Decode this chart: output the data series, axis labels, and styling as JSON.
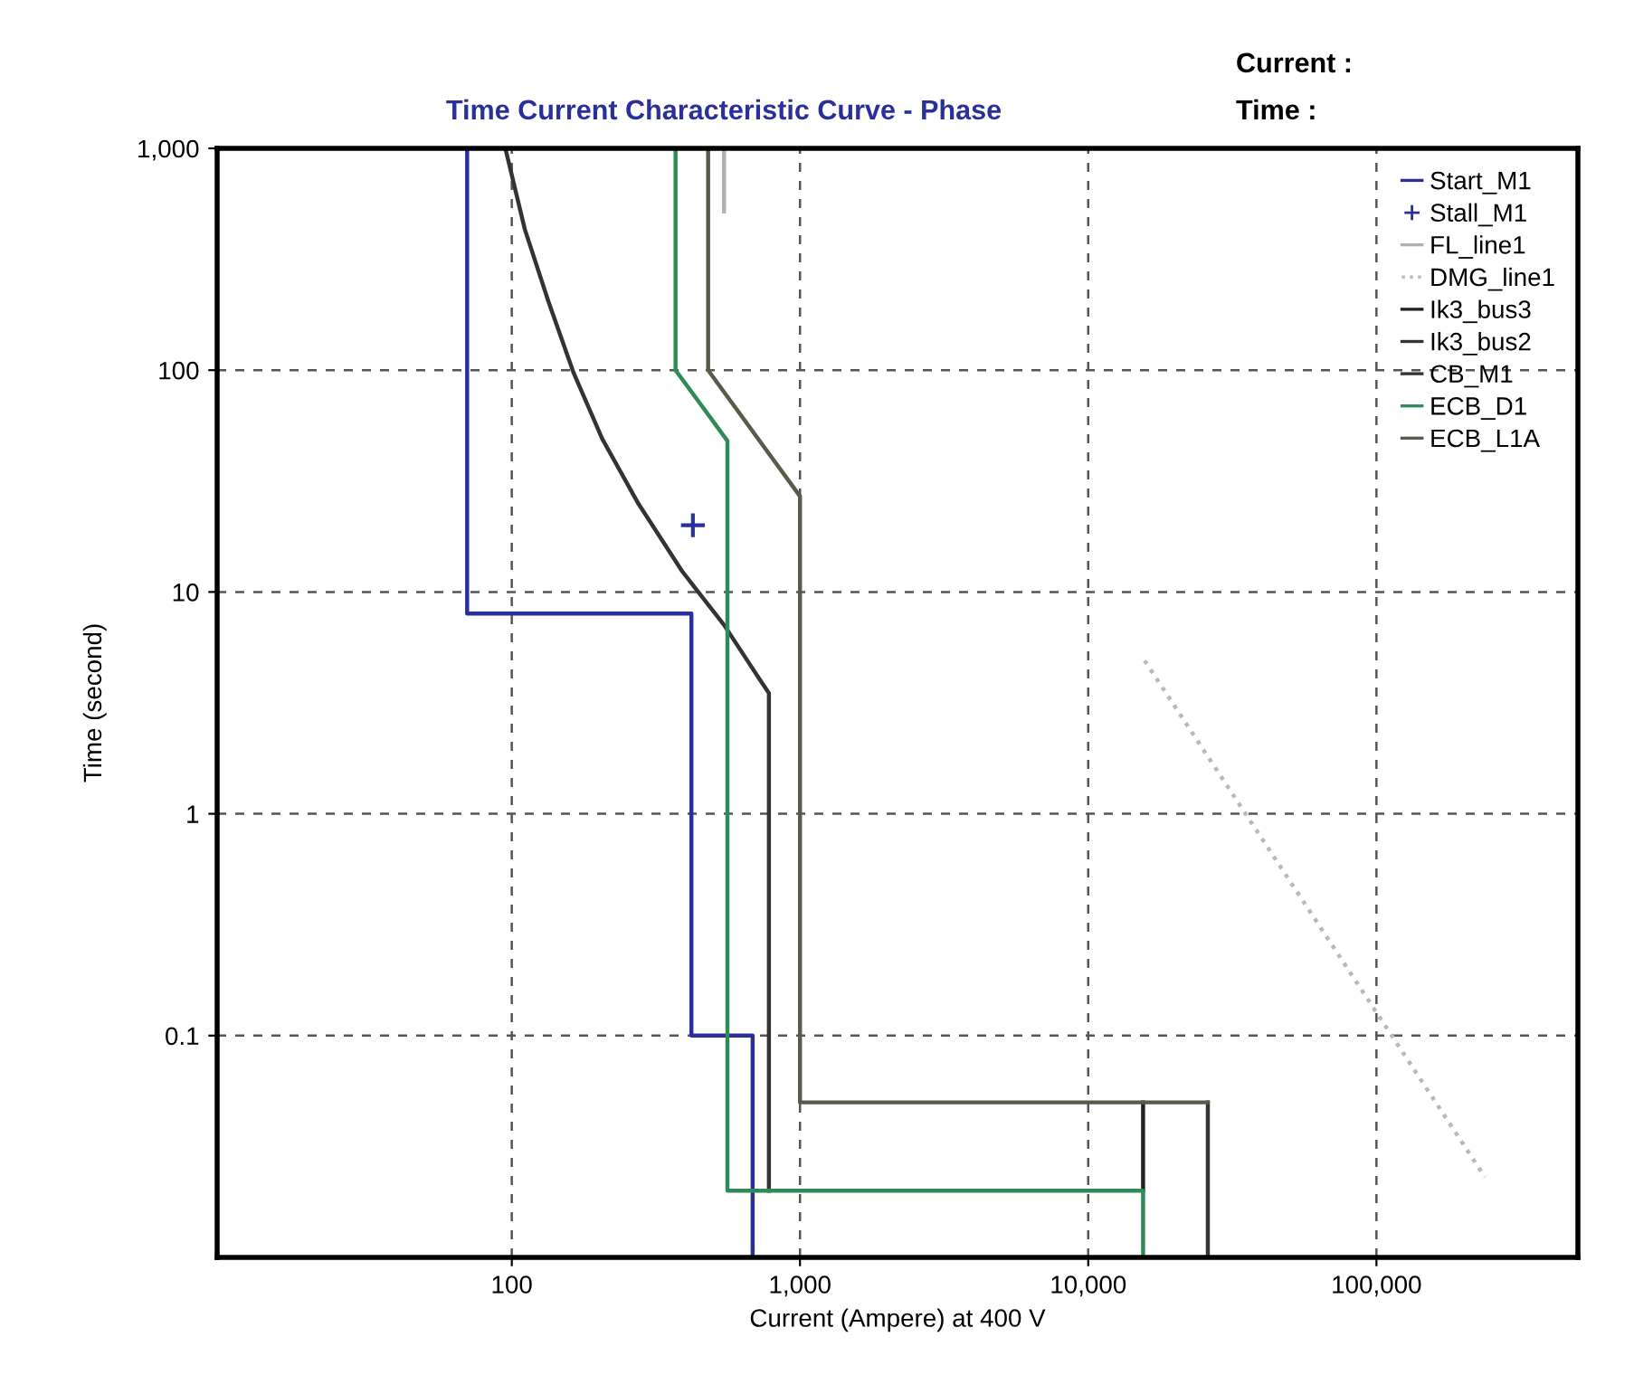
{
  "chart_data": {
    "type": "line",
    "title": "Time Current Characteristic Curve - Phase",
    "xlabel": "Current (Ampere) at 400 V",
    "ylabel": "Time (second)",
    "annotations": [
      "Current :",
      "Time :"
    ],
    "log": "xy",
    "grid": true,
    "legend": "top right",
    "xlim": [
      9.5,
      500000
    ],
    "ylim": [
      0.01,
      1000
    ],
    "xticks": [
      {
        "value": 100,
        "label": "100"
      },
      {
        "value": 1000,
        "label": "1,000"
      },
      {
        "value": 10000,
        "label": "10,000"
      },
      {
        "value": 100000,
        "label": "100,000"
      }
    ],
    "yticks": [
      {
        "value": 0.1,
        "label": "0.1"
      },
      {
        "value": 1,
        "label": "1"
      },
      {
        "value": 10,
        "label": "10"
      },
      {
        "value": 100,
        "label": "100"
      },
      {
        "value": 1000,
        "label": "1,000"
      }
    ],
    "series": [
      {
        "name": "Start_M1",
        "color": "#2a2f9a",
        "x": [
          70,
          70,
          420,
          420,
          685,
          685
        ],
        "values": [
          1000,
          8,
          8,
          0.1,
          0.1,
          0.01
        ]
      },
      {
        "name": "Stall_M1",
        "type": "scatter",
        "marker": "cross",
        "color": "#2a2f9a",
        "x": [
          425
        ],
        "values": [
          20
        ]
      },
      {
        "name": "FL_line1",
        "color": "#b0b0b0",
        "x": [
          545,
          545
        ],
        "values": [
          1000,
          520
        ]
      },
      {
        "name": "DMG_line1",
        "line_style": "dotted",
        "color": "#b8b8b8",
        "x": [
          15700,
          238000
        ],
        "values": [
          4.9,
          0.023
        ]
      },
      {
        "name": "Ik3_bus3",
        "color": "#222222",
        "x": [
          15500,
          15500
        ],
        "values": [
          0.05,
          0.02
        ]
      },
      {
        "name": "Ik3_bus2",
        "color": "#333333",
        "x": [
          26000,
          26000
        ],
        "values": [
          0.05,
          0.01
        ]
      },
      {
        "name": "CB_M1",
        "color": "#333333",
        "x": [
          95,
          111,
          134,
          164,
          206,
          275,
          390,
          545,
          728,
          780,
          780
        ],
        "values": [
          1000,
          431,
          204,
          97,
          49,
          25,
          12.4,
          7.1,
          4.0,
          3.5,
          0.02
        ]
      },
      {
        "name": "ECB_D1",
        "color": "#2e8b57",
        "x": [
          370,
          370,
          560,
          560,
          15500,
          15500
        ],
        "values": [
          1000,
          100,
          48,
          0.02,
          0.02,
          0.01
        ]
      },
      {
        "name": "ECB_L1A",
        "color": "#5a5a4a",
        "x": [
          480,
          480,
          1000,
          1000,
          26000
        ],
        "values": [
          1000,
          100,
          27,
          0.05,
          0.05
        ]
      }
    ]
  }
}
